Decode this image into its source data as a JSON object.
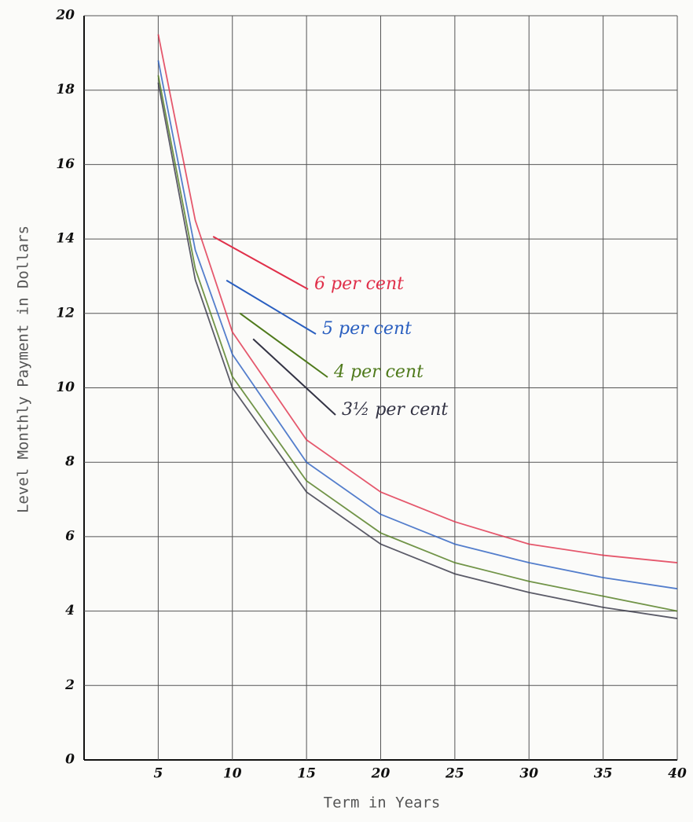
{
  "chart_data": {
    "type": "line",
    "x_label": "Term in Years",
    "y_label": "Level Monthly Payment in Dollars",
    "x": [
      5,
      7.5,
      10,
      15,
      20,
      25,
      30,
      35,
      40
    ],
    "series": [
      {
        "name": "6 per cent",
        "color": "#e0304a",
        "values": [
          19.5,
          14.5,
          11.5,
          8.6,
          7.2,
          6.4,
          5.8,
          5.5,
          5.3
        ]
      },
      {
        "name": "5 per cent",
        "color": "#2a5fc0",
        "values": [
          18.8,
          13.7,
          10.9,
          8.0,
          6.6,
          5.8,
          5.3,
          4.9,
          4.6
        ]
      },
      {
        "name": "4 per cent",
        "color": "#4f7a1c",
        "values": [
          18.4,
          13.2,
          10.3,
          7.5,
          6.1,
          5.3,
          4.8,
          4.4,
          4.0
        ]
      },
      {
        "name": "3½ per cent",
        "color": "#333344",
        "values": [
          18.2,
          12.9,
          10.0,
          7.2,
          5.8,
          5.0,
          4.5,
          4.1,
          3.8
        ]
      }
    ],
    "xlim": [
      0,
      40
    ],
    "ylim": [
      0,
      20
    ],
    "xticks": [
      5,
      10,
      15,
      20,
      25,
      30,
      35,
      40
    ],
    "yticks": [
      0,
      2,
      4,
      6,
      8,
      10,
      12,
      14,
      16,
      18,
      20
    ],
    "grid": true
  }
}
